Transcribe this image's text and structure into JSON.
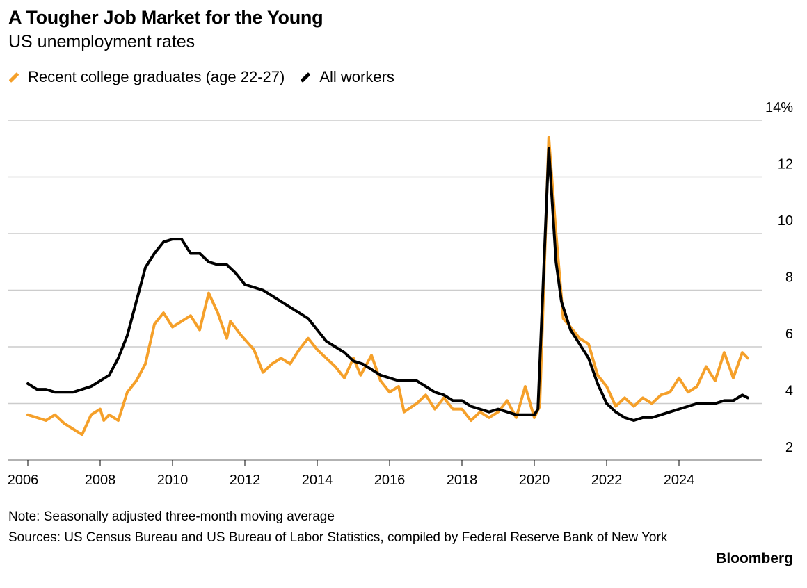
{
  "header": {
    "title": "A Tougher Job Market for the Young",
    "subtitle": "US unemployment rates"
  },
  "footer": {
    "note": "Note: Seasonally adjusted three-month moving average",
    "sources": "Sources: US Census Bureau and US Bureau of Labor Statistics, compiled by Federal Reserve Bank of New York",
    "brand": "Bloomberg"
  },
  "chart_data": {
    "type": "line",
    "title": "A Tougher Job Market for the Young",
    "subtitle": "US unemployment rates",
    "xlabel": "",
    "ylabel": "%",
    "xlim": [
      2006,
      2026.2
    ],
    "ylim": [
      2,
      14
    ],
    "x_ticks": [
      "2006",
      "2008",
      "2010",
      "2012",
      "2014",
      "2016",
      "2018",
      "2020",
      "2022",
      "2024"
    ],
    "y_ticks": [
      "14%",
      "12",
      "10",
      "8",
      "6",
      "4",
      "2"
    ],
    "grid": true,
    "legend_position": "top-left",
    "series": [
      {
        "name": "Recent college graduates (age 22-27)",
        "color": "#f5a02a",
        "x": [
          2006,
          2006.25,
          2006.5,
          2006.75,
          2007,
          2007.25,
          2007.5,
          2007.75,
          2008,
          2008.1,
          2008.25,
          2008.5,
          2008.75,
          2009,
          2009.25,
          2009.5,
          2009.75,
          2010,
          2010.25,
          2010.5,
          2010.75,
          2011,
          2011.25,
          2011.5,
          2011.6,
          2011.9,
          2012.25,
          2012.5,
          2012.75,
          2013,
          2013.25,
          2013.5,
          2013.75,
          2014,
          2014.25,
          2014.5,
          2014.75,
          2015,
          2015.2,
          2015.5,
          2015.75,
          2016,
          2016.25,
          2016.4,
          2016.75,
          2017,
          2017.25,
          2017.5,
          2017.75,
          2018,
          2018.25,
          2018.5,
          2018.75,
          2019,
          2019.25,
          2019.5,
          2019.75,
          2020,
          2020.15,
          2020.4,
          2020.6,
          2020.8,
          2021,
          2021.25,
          2021.5,
          2021.75,
          2022,
          2022.25,
          2022.5,
          2022.75,
          2023,
          2023.25,
          2023.5,
          2023.75,
          2024,
          2024.25,
          2024.5,
          2024.75,
          2025,
          2025.25,
          2025.5,
          2025.75,
          2025.9
        ],
        "values": [
          3.6,
          3.5,
          3.4,
          3.6,
          3.3,
          3.1,
          2.9,
          3.6,
          3.8,
          3.4,
          3.6,
          3.4,
          4.4,
          4.8,
          5.4,
          6.8,
          7.2,
          6.7,
          6.9,
          7.1,
          6.6,
          7.9,
          7.2,
          6.3,
          6.9,
          6.4,
          5.9,
          5.1,
          5.4,
          5.6,
          5.4,
          5.9,
          6.3,
          5.9,
          5.6,
          5.3,
          4.9,
          5.6,
          5.0,
          5.7,
          4.8,
          4.4,
          4.6,
          3.7,
          4.0,
          4.3,
          3.8,
          4.2,
          3.8,
          3.8,
          3.4,
          3.7,
          3.5,
          3.7,
          4.1,
          3.5,
          4.6,
          3.5,
          3.9,
          13.4,
          10.0,
          7.0,
          6.7,
          6.3,
          6.1,
          5.0,
          4.6,
          3.9,
          4.2,
          3.9,
          4.2,
          4.0,
          4.3,
          4.4,
          4.9,
          4.4,
          4.6,
          5.3,
          4.8,
          5.8,
          4.9,
          5.8,
          5.6
        ]
      },
      {
        "name": "All workers",
        "color": "#000000",
        "x": [
          2006,
          2006.25,
          2006.5,
          2006.75,
          2007,
          2007.25,
          2007.5,
          2007.75,
          2008,
          2008.25,
          2008.5,
          2008.75,
          2009,
          2009.25,
          2009.5,
          2009.75,
          2010,
          2010.25,
          2010.5,
          2010.75,
          2011,
          2011.25,
          2011.5,
          2011.75,
          2012,
          2012.25,
          2012.5,
          2012.75,
          2013,
          2013.25,
          2013.5,
          2013.75,
          2014,
          2014.25,
          2014.5,
          2014.75,
          2015,
          2015.25,
          2015.5,
          2015.75,
          2016,
          2016.25,
          2016.5,
          2016.75,
          2017,
          2017.25,
          2017.5,
          2017.75,
          2018,
          2018.25,
          2018.5,
          2018.75,
          2019,
          2019.25,
          2019.5,
          2019.75,
          2020,
          2020.1,
          2020.4,
          2020.6,
          2020.75,
          2021,
          2021.25,
          2021.5,
          2021.75,
          2022,
          2022.25,
          2022.5,
          2022.75,
          2023,
          2023.25,
          2023.5,
          2023.75,
          2024,
          2024.25,
          2024.5,
          2024.75,
          2025,
          2025.25,
          2025.5,
          2025.75,
          2025.9
        ],
        "values": [
          4.7,
          4.5,
          4.5,
          4.4,
          4.4,
          4.4,
          4.5,
          4.6,
          4.8,
          5.0,
          5.6,
          6.4,
          7.6,
          8.8,
          9.3,
          9.7,
          9.8,
          9.8,
          9.3,
          9.3,
          9.0,
          8.9,
          8.9,
          8.6,
          8.2,
          8.1,
          8.0,
          7.8,
          7.6,
          7.4,
          7.2,
          7.0,
          6.6,
          6.2,
          6.0,
          5.8,
          5.5,
          5.4,
          5.2,
          5.0,
          4.9,
          4.8,
          4.8,
          4.8,
          4.6,
          4.4,
          4.3,
          4.1,
          4.1,
          3.9,
          3.8,
          3.7,
          3.8,
          3.7,
          3.6,
          3.6,
          3.6,
          3.8,
          13.0,
          9.0,
          7.6,
          6.6,
          6.1,
          5.6,
          4.7,
          4.0,
          3.7,
          3.5,
          3.4,
          3.5,
          3.5,
          3.6,
          3.7,
          3.8,
          3.9,
          4.0,
          4.0,
          4.0,
          4.1,
          4.1,
          4.3,
          4.2
        ]
      }
    ]
  }
}
